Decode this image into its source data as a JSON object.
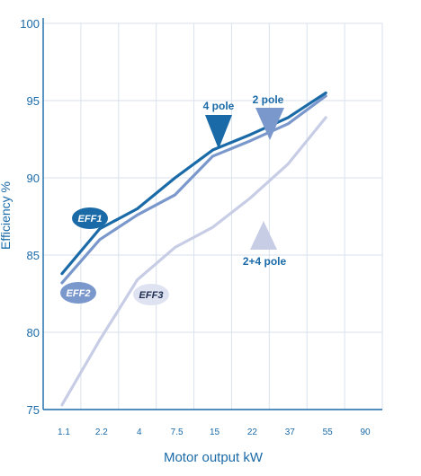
{
  "chart_data": {
    "type": "line",
    "xlabel": "Motor output kW",
    "ylabel": "Efficiency %",
    "x_categories": [
      "1.1",
      "2.2",
      "4",
      "7.5",
      "15",
      "22",
      "37",
      "55",
      "90"
    ],
    "y_ticks": [
      {
        "label": "75",
        "value": 75
      },
      {
        "label": "80",
        "value": 80
      },
      {
        "label": "85",
        "value": 85
      },
      {
        "label": "90",
        "value": 90
      },
      {
        "label": "95",
        "value": 95
      },
      {
        "label": "100",
        "value": 100
      }
    ],
    "ylim": [
      75,
      100
    ],
    "grid": true,
    "series": [
      {
        "name": "4 pole",
        "color": "#1a6aa8",
        "x": [
          "1.1",
          "2.2",
          "4",
          "7.5",
          "15",
          "22",
          "37",
          "55"
        ],
        "values": [
          83.8,
          86.7,
          88.0,
          90.0,
          91.8,
          92.8,
          93.9,
          95.5
        ]
      },
      {
        "name": "2 pole",
        "color": "#7b98cc",
        "x": [
          "1.1",
          "2.2",
          "4",
          "7.5",
          "15",
          "22",
          "37",
          "55"
        ],
        "values": [
          83.2,
          86.0,
          87.6,
          88.9,
          91.4,
          92.4,
          93.5,
          95.3
        ]
      },
      {
        "name": "2+4 pole",
        "color": "#c8cde6",
        "x": [
          "1.1",
          "2.2",
          "4",
          "7.5",
          "15",
          "22",
          "37",
          "55"
        ],
        "values": [
          75.3,
          79.5,
          83.4,
          85.5,
          86.8,
          88.7,
          90.9,
          93.9
        ]
      }
    ],
    "annotations": [
      {
        "text": "4 pole",
        "color": "#1a6aa8",
        "marker": "down-triangle"
      },
      {
        "text": "2 pole",
        "color": "#7b98cc",
        "marker": "down-triangle"
      },
      {
        "text": "2+4 pole",
        "color": "#c8cde6",
        "marker": "up-triangle"
      }
    ],
    "badges": [
      {
        "text": "EFF1",
        "fill": "#1a6aa8",
        "text_color": "#ffffff"
      },
      {
        "text": "EFF2",
        "fill": "#7b98cc",
        "text_color": "#ffffff"
      },
      {
        "text": "EFF3",
        "fill": "#dfe3f1",
        "text_color": "#1d2b4f"
      }
    ]
  }
}
